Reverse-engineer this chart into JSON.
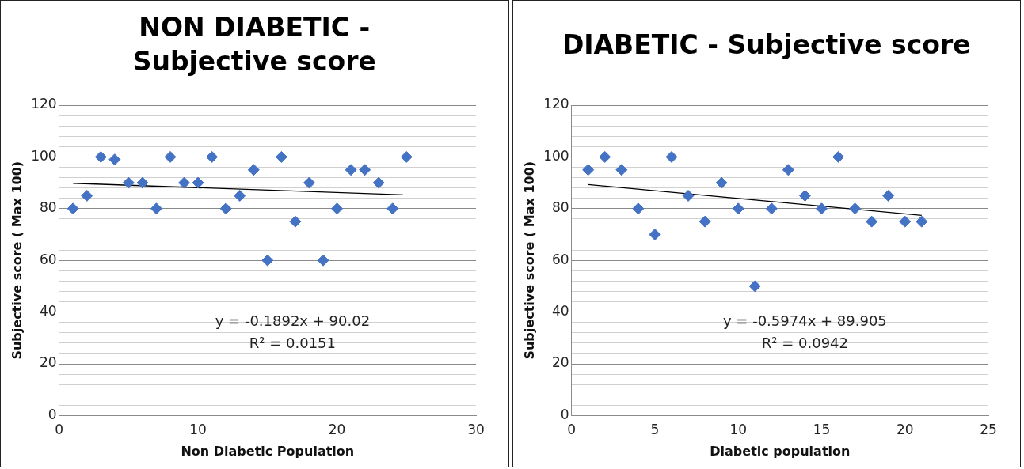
{
  "chart_data": [
    {
      "type": "scatter",
      "title": "NON DIABETIC - Subjective score",
      "xlabel": "Non Diabetic Population",
      "ylabel": "Subjective score ( Max 100)",
      "x": [
        1,
        2,
        3,
        4,
        5,
        6,
        7,
        8,
        9,
        10,
        11,
        12,
        13,
        14,
        15,
        16,
        17,
        18,
        19,
        20,
        21,
        22,
        23,
        24,
        25
      ],
      "series": [
        {
          "color": "#4472c4",
          "marker": "diamond",
          "values": [
            80,
            85,
            100,
            99,
            90,
            90,
            80,
            100,
            90,
            90,
            100,
            80,
            85,
            95,
            60,
            100,
            75,
            90,
            60,
            80,
            95,
            95,
            90,
            80,
            100
          ]
        },
        {
          "type": "line",
          "color": "#000000",
          "marker": "none",
          "x": [
            1,
            25
          ],
          "values": [
            89.8,
            85.3
          ]
        }
      ],
      "xlim": [
        0,
        30
      ],
      "xticks": [
        0,
        10,
        20,
        30
      ],
      "ylim": [
        0,
        120
      ],
      "yticks": [
        0,
        {
          "value": 4,
          "label": null
        },
        {
          "value": 8,
          "label": null
        },
        {
          "value": 12,
          "label": null
        },
        {
          "value": 16,
          "label": null
        },
        20,
        {
          "value": 24,
          "label": null
        },
        {
          "value": 28,
          "label": null
        },
        {
          "value": 32,
          "label": null
        },
        {
          "value": 36,
          "label": null
        },
        40,
        {
          "value": 44,
          "label": null
        },
        {
          "value": 48,
          "label": null
        },
        {
          "value": 52,
          "label": null
        },
        {
          "value": 56,
          "label": null
        },
        60,
        {
          "value": 64,
          "label": null
        },
        {
          "value": 68,
          "label": null
        },
        {
          "value": 72,
          "label": null
        },
        {
          "value": 76,
          "label": null
        },
        80,
        {
          "value": 84,
          "label": null
        },
        {
          "value": 88,
          "label": null
        },
        {
          "value": 92,
          "label": null
        },
        {
          "value": 96,
          "label": null
        },
        100,
        {
          "value": 104,
          "label": null
        },
        {
          "value": 108,
          "label": null
        },
        {
          "value": 112,
          "label": null
        },
        {
          "value": 116,
          "label": null
        },
        120
      ],
      "grid": "y",
      "legend": false,
      "annotations": [
        "y = -0.1892x + 90.02",
        "R² = 0.0151"
      ]
    },
    {
      "type": "scatter",
      "title": "DIABETIC - Subjective score",
      "xlabel": "Diabetic population",
      "ylabel": "Subjective score ( Max 100)",
      "x": [
        1,
        2,
        3,
        4,
        5,
        6,
        7,
        8,
        9,
        10,
        11,
        12,
        13,
        14,
        15,
        16,
        17,
        18,
        19,
        20,
        21
      ],
      "series": [
        {
          "color": "#4472c4",
          "marker": "diamond",
          "values": [
            95,
            100,
            95,
            80,
            70,
            100,
            85,
            75,
            90,
            80,
            50,
            80,
            95,
            85,
            80,
            100,
            80,
            75,
            85,
            75,
            75
          ]
        },
        {
          "type": "line",
          "color": "#000000",
          "marker": "none",
          "x": [
            1,
            21
          ],
          "values": [
            89.3,
            77.4
          ]
        }
      ],
      "xlim": [
        0,
        25
      ],
      "xticks": [
        0,
        5,
        10,
        15,
        20,
        25
      ],
      "ylim": [
        0,
        120
      ],
      "yticks": [
        0,
        {
          "value": 4,
          "label": null
        },
        {
          "value": 8,
          "label": null
        },
        {
          "value": 12,
          "label": null
        },
        {
          "value": 16,
          "label": null
        },
        20,
        {
          "value": 24,
          "label": null
        },
        {
          "value": 28,
          "label": null
        },
        {
          "value": 32,
          "label": null
        },
        {
          "value": 36,
          "label": null
        },
        40,
        {
          "value": 44,
          "label": null
        },
        {
          "value": 48,
          "label": null
        },
        {
          "value": 52,
          "label": null
        },
        {
          "value": 56,
          "label": null
        },
        60,
        {
          "value": 64,
          "label": null
        },
        {
          "value": 68,
          "label": null
        },
        {
          "value": 72,
          "label": null
        },
        {
          "value": 76,
          "label": null
        },
        80,
        {
          "value": 84,
          "label": null
        },
        {
          "value": 88,
          "label": null
        },
        {
          "value": 92,
          "label": null
        },
        {
          "value": 96,
          "label": null
        },
        100,
        {
          "value": 104,
          "label": null
        },
        {
          "value": 108,
          "label": null
        },
        {
          "value": 112,
          "label": null
        },
        {
          "value": 116,
          "label": null
        },
        120
      ],
      "grid": "y",
      "legend": false,
      "annotations": [
        "y = -0.5974x + 89.905",
        "R² = 0.0942"
      ]
    }
  ]
}
